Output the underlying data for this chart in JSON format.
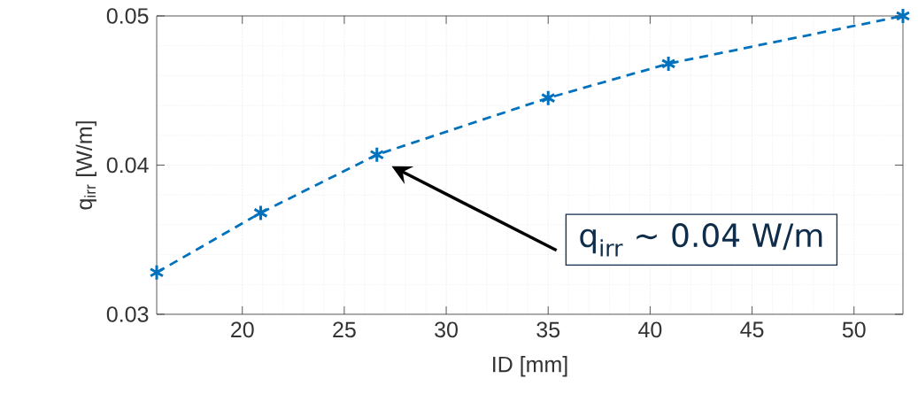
{
  "chart_data": {
    "type": "line",
    "xlabel": "ID [mm]",
    "ylabel": "q$_{irr}$ [W/m]",
    "x": [
      15.8,
      20.9,
      26.6,
      35.0,
      40.9,
      52.4
    ],
    "series": [
      {
        "color": "#0072bd",
        "values": [
          0.0328,
          0.0368,
          0.0407,
          0.0445,
          0.0468,
          0.05
        ]
      }
    ],
    "xlim": [
      15.8,
      52.4
    ],
    "ylim": [
      0.03,
      0.05
    ],
    "xticks": [
      20,
      25,
      30,
      35,
      40,
      45,
      50
    ],
    "yticks": [
      0.03,
      0.04,
      0.05
    ],
    "grid": true,
    "marker": "cross",
    "line_style": "dashed",
    "annotations": [
      "q$_{irr}$ ~ 0.04 W/m"
    ]
  }
}
